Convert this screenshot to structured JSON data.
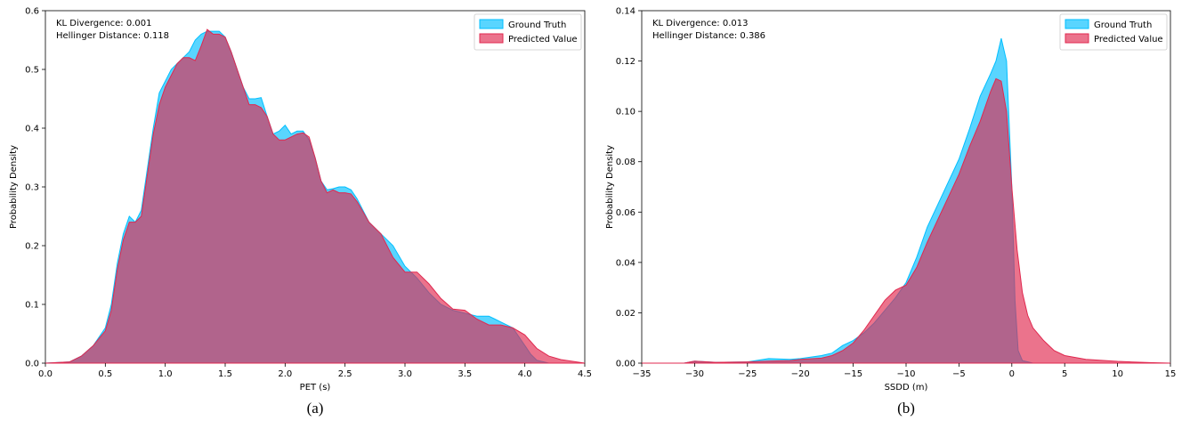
{
  "chart_data": [
    {
      "type": "area",
      "caption": "(a)",
      "xlabel": "PET (s)",
      "ylabel": "Probability Density",
      "xlim": [
        0.0,
        4.5
      ],
      "ylim": [
        0.0,
        0.6
      ],
      "xticks": [
        "0.0",
        "0.5",
        "1.0",
        "1.5",
        "2.0",
        "2.5",
        "3.0",
        "3.5",
        "4.0",
        "4.5"
      ],
      "xtick_values": [
        0.0,
        0.5,
        1.0,
        1.5,
        2.0,
        2.5,
        3.0,
        3.5,
        4.0,
        4.5
      ],
      "yticks": [
        "0.0",
        "0.1",
        "0.2",
        "0.3",
        "0.4",
        "0.5",
        "0.6"
      ],
      "ytick_values": [
        0.0,
        0.1,
        0.2,
        0.3,
        0.4,
        0.5,
        0.6
      ],
      "annotations": [
        "KL Divergence: 0.001",
        "Hellinger Distance: 0.118"
      ],
      "legend": {
        "position": "top-right",
        "entries": [
          "Ground Truth",
          "Predicted Value"
        ]
      },
      "series": [
        {
          "name": "Ground Truth",
          "color": "#00bfff",
          "x": [
            0.0,
            0.2,
            0.3,
            0.4,
            0.5,
            0.55,
            0.6,
            0.65,
            0.7,
            0.75,
            0.8,
            0.85,
            0.9,
            0.95,
            1.0,
            1.05,
            1.1,
            1.15,
            1.2,
            1.25,
            1.3,
            1.35,
            1.4,
            1.45,
            1.5,
            1.55,
            1.6,
            1.65,
            1.7,
            1.75,
            1.8,
            1.85,
            1.9,
            1.95,
            2.0,
            2.05,
            2.1,
            2.15,
            2.2,
            2.25,
            2.3,
            2.35,
            2.4,
            2.45,
            2.5,
            2.55,
            2.6,
            2.7,
            2.8,
            2.9,
            3.0,
            3.1,
            3.2,
            3.3,
            3.4,
            3.5,
            3.6,
            3.7,
            3.75,
            3.8,
            3.9,
            4.0,
            4.05,
            4.1,
            4.2
          ],
          "values": [
            0.0,
            0.002,
            0.012,
            0.03,
            0.06,
            0.1,
            0.17,
            0.22,
            0.25,
            0.24,
            0.26,
            0.33,
            0.4,
            0.46,
            0.48,
            0.5,
            0.51,
            0.52,
            0.53,
            0.55,
            0.56,
            0.565,
            0.565,
            0.565,
            0.555,
            0.53,
            0.5,
            0.47,
            0.45,
            0.45,
            0.452,
            0.42,
            0.39,
            0.395,
            0.405,
            0.39,
            0.395,
            0.395,
            0.38,
            0.35,
            0.31,
            0.295,
            0.297,
            0.3,
            0.3,
            0.295,
            0.28,
            0.24,
            0.22,
            0.2,
            0.165,
            0.145,
            0.12,
            0.1,
            0.09,
            0.085,
            0.08,
            0.08,
            0.075,
            0.07,
            0.06,
            0.03,
            0.015,
            0.005,
            0.0
          ]
        },
        {
          "name": "Predicted Value",
          "color": "#e0284f",
          "x": [
            0.0,
            0.2,
            0.3,
            0.4,
            0.5,
            0.55,
            0.6,
            0.65,
            0.7,
            0.75,
            0.8,
            0.85,
            0.9,
            0.95,
            1.0,
            1.05,
            1.1,
            1.15,
            1.2,
            1.25,
            1.3,
            1.35,
            1.4,
            1.45,
            1.5,
            1.55,
            1.6,
            1.65,
            1.7,
            1.75,
            1.8,
            1.85,
            1.9,
            1.95,
            2.0,
            2.05,
            2.1,
            2.15,
            2.2,
            2.25,
            2.3,
            2.35,
            2.4,
            2.45,
            2.5,
            2.55,
            2.6,
            2.7,
            2.8,
            2.9,
            3.0,
            3.1,
            3.2,
            3.3,
            3.4,
            3.5,
            3.6,
            3.7,
            3.8,
            3.9,
            4.0,
            4.1,
            4.2,
            4.3,
            4.4,
            4.5
          ],
          "values": [
            0.0,
            0.002,
            0.012,
            0.03,
            0.055,
            0.09,
            0.16,
            0.21,
            0.24,
            0.24,
            0.25,
            0.32,
            0.39,
            0.44,
            0.47,
            0.49,
            0.51,
            0.52,
            0.52,
            0.515,
            0.54,
            0.568,
            0.56,
            0.56,
            0.555,
            0.53,
            0.5,
            0.47,
            0.44,
            0.44,
            0.435,
            0.42,
            0.39,
            0.38,
            0.38,
            0.385,
            0.39,
            0.392,
            0.385,
            0.35,
            0.31,
            0.29,
            0.295,
            0.29,
            0.29,
            0.288,
            0.275,
            0.24,
            0.22,
            0.18,
            0.155,
            0.155,
            0.135,
            0.11,
            0.092,
            0.09,
            0.075,
            0.065,
            0.065,
            0.06,
            0.048,
            0.025,
            0.012,
            0.006,
            0.003,
            0.0
          ]
        }
      ]
    },
    {
      "type": "area",
      "caption": "(b)",
      "xlabel": "SSDD (m)",
      "ylabel": "Probability Density",
      "xlim": [
        -35,
        15
      ],
      "ylim": [
        0.0,
        0.14
      ],
      "xticks": [
        "−35",
        "−30",
        "−25",
        "−20",
        "−15",
        "−10",
        "−5",
        "0",
        "5",
        "10",
        "15"
      ],
      "xtick_values": [
        -35,
        -30,
        -25,
        -20,
        -15,
        -10,
        -5,
        0,
        5,
        10,
        15
      ],
      "yticks": [
        "0.00",
        "0.02",
        "0.04",
        "0.06",
        "0.08",
        "0.10",
        "0.12",
        "0.14"
      ],
      "ytick_values": [
        0.0,
        0.02,
        0.04,
        0.06,
        0.08,
        0.1,
        0.12,
        0.14
      ],
      "annotations": [
        "KL Divergence: 0.013",
        "Hellinger Distance: 0.386"
      ],
      "legend": {
        "position": "top-right",
        "entries": [
          "Ground Truth",
          "Predicted Value"
        ]
      },
      "series": [
        {
          "name": "Ground Truth",
          "color": "#00bfff",
          "x": [
            -35,
            -31,
            -30,
            -28,
            -25,
            -23,
            -21,
            -20,
            -18,
            -17,
            -16,
            -15,
            -14,
            -13,
            -12,
            -11,
            -10,
            -9,
            -8,
            -7,
            -6,
            -5,
            -4,
            -3,
            -2,
            -1.5,
            -1,
            -0.5,
            0,
            0.3,
            0.6,
            1,
            2
          ],
          "values": [
            0.0,
            0.0,
            0.0008,
            0.0003,
            0.0005,
            0.0018,
            0.0015,
            0.0018,
            0.003,
            0.004,
            0.007,
            0.009,
            0.012,
            0.016,
            0.021,
            0.026,
            0.032,
            0.042,
            0.054,
            0.063,
            0.072,
            0.081,
            0.093,
            0.106,
            0.115,
            0.12,
            0.129,
            0.12,
            0.07,
            0.025,
            0.005,
            0.001,
            0.0
          ]
        },
        {
          "name": "Predicted Value",
          "color": "#e0284f",
          "x": [
            -35,
            -31,
            -30,
            -28,
            -25,
            -23,
            -21,
            -20,
            -18,
            -17,
            -16,
            -15,
            -14,
            -13,
            -12,
            -11,
            -10,
            -9,
            -8,
            -7,
            -6,
            -5,
            -4,
            -3,
            -2,
            -1.5,
            -1,
            -0.5,
            0,
            0.5,
            1,
            1.5,
            2,
            3,
            4,
            5,
            7,
            10,
            13,
            15
          ],
          "values": [
            0.0,
            0.0,
            0.0008,
            0.0003,
            0.0005,
            0.0008,
            0.001,
            0.0015,
            0.002,
            0.003,
            0.005,
            0.008,
            0.013,
            0.019,
            0.025,
            0.029,
            0.031,
            0.038,
            0.048,
            0.057,
            0.066,
            0.075,
            0.086,
            0.096,
            0.108,
            0.113,
            0.112,
            0.1,
            0.07,
            0.045,
            0.028,
            0.019,
            0.014,
            0.009,
            0.005,
            0.003,
            0.0015,
            0.0007,
            0.0002,
            0.0
          ]
        }
      ]
    }
  ]
}
